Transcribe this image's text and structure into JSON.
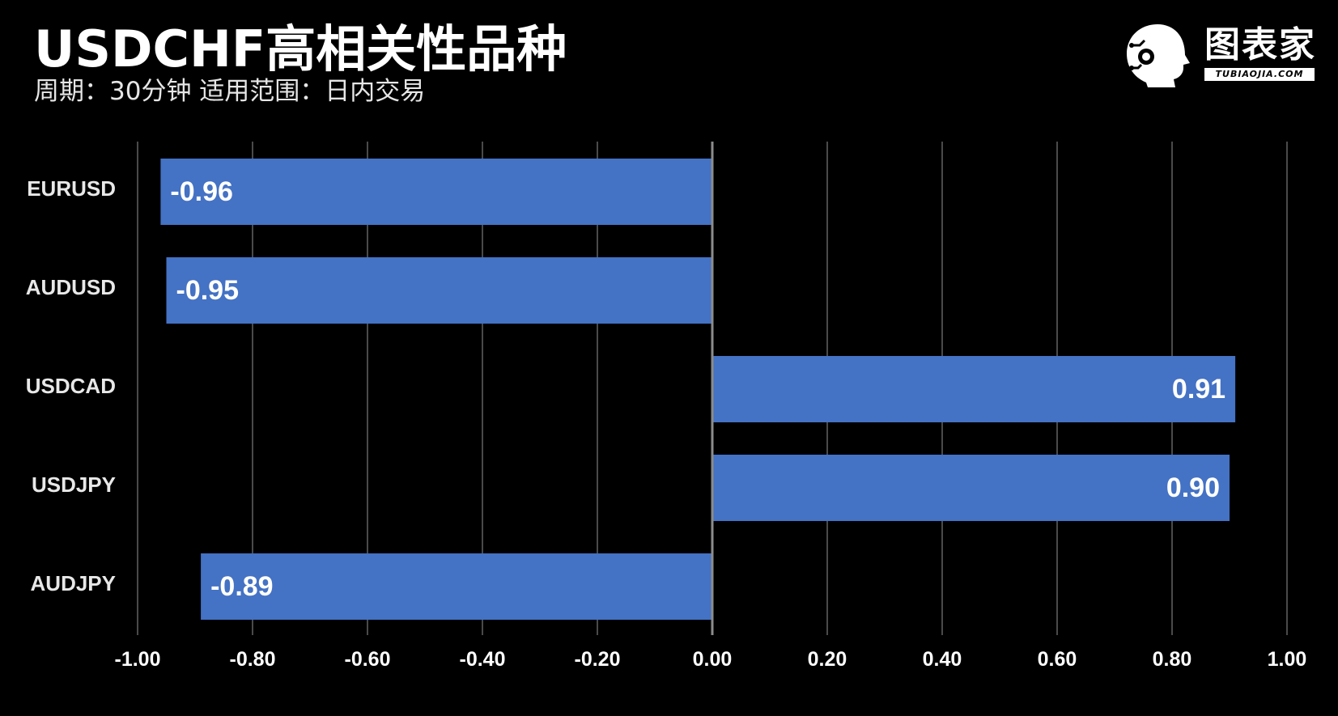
{
  "header": {
    "title": "USDCHF高相关性品种",
    "subtitle": "周期：30分钟  适用范围：日内交易"
  },
  "logo": {
    "name": "图表家",
    "domain": "TUBIAOJIA.COM"
  },
  "colors": {
    "background": "#000000",
    "bar": "#4472c4",
    "grid": "#4a4a4a",
    "zero_line": "#8c8c8c",
    "text": "#ffffff"
  },
  "chart_data": {
    "type": "bar",
    "orientation": "horizontal",
    "categories": [
      "EURUSD",
      "AUDUSD",
      "USDCAD",
      "USDJPY",
      "AUDJPY"
    ],
    "values": [
      -0.96,
      -0.95,
      0.91,
      0.9,
      -0.89
    ],
    "value_labels": [
      "-0.96",
      "-0.95",
      "0.91",
      "0.90",
      "-0.89"
    ],
    "xlim": [
      -1.0,
      1.0
    ],
    "xticks": [
      "-1.00",
      "-0.80",
      "-0.60",
      "-0.40",
      "-0.20",
      "0.00",
      "0.20",
      "0.40",
      "0.60",
      "0.80",
      "1.00"
    ],
    "grid": true,
    "legend": "none"
  }
}
